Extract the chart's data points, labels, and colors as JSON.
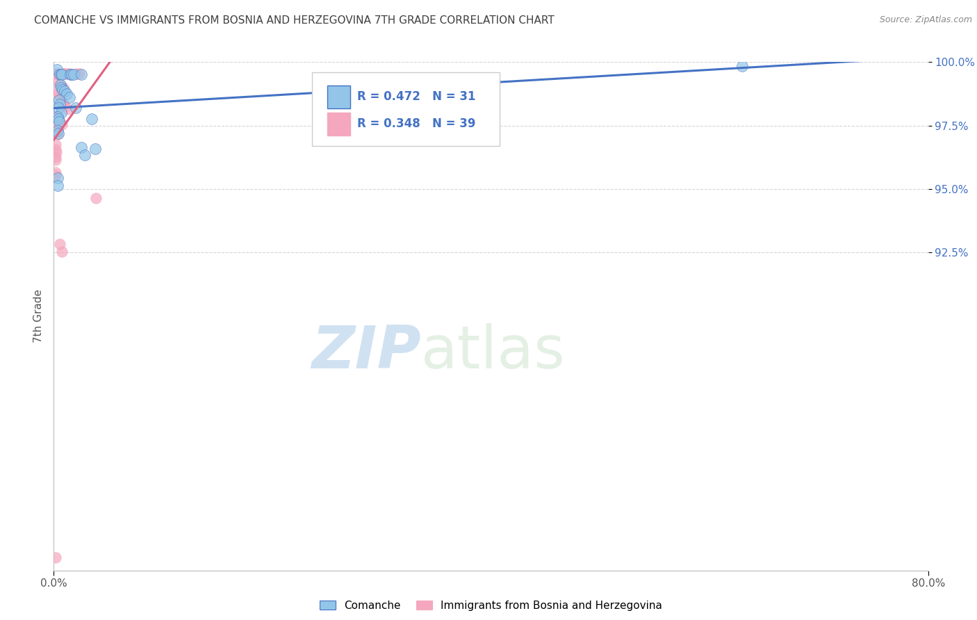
{
  "title": "COMANCHE VS IMMIGRANTS FROM BOSNIA AND HERZEGOVINA 7TH GRADE CORRELATION CHART",
  "source": "Source: ZipAtlas.com",
  "ylabel": "7th Grade",
  "watermark_zip": "ZIP",
  "watermark_atlas": "atlas",
  "legend_label_blue": "Comanche",
  "legend_label_pink": "Immigrants from Bosnia and Herzegovina",
  "r_blue": 0.472,
  "n_blue": 31,
  "r_pink": 0.348,
  "n_pink": 39,
  "xlim": [
    0.0,
    80.0
  ],
  "ylim": [
    80.0,
    100.0
  ],
  "y_ticks": [
    92.5,
    95.0,
    97.5,
    100.0
  ],
  "blue_dots": [
    [
      0.3,
      99.7
    ],
    [
      0.55,
      99.5
    ],
    [
      0.65,
      99.5
    ],
    [
      0.75,
      99.5
    ],
    [
      1.5,
      99.5
    ],
    [
      1.65,
      99.5
    ],
    [
      1.85,
      99.5
    ],
    [
      2.55,
      99.5
    ],
    [
      0.6,
      99.1
    ],
    [
      0.7,
      99.0
    ],
    [
      0.8,
      98.9
    ],
    [
      1.0,
      98.85
    ],
    [
      1.2,
      98.75
    ],
    [
      1.45,
      98.6
    ],
    [
      0.5,
      98.5
    ],
    [
      0.55,
      98.35
    ],
    [
      0.45,
      98.2
    ],
    [
      2.0,
      98.2
    ],
    [
      0.65,
      98.0
    ],
    [
      0.35,
      97.85
    ],
    [
      0.45,
      97.75
    ],
    [
      0.5,
      97.65
    ],
    [
      3.5,
      97.75
    ],
    [
      0.35,
      97.3
    ],
    [
      0.45,
      97.2
    ],
    [
      2.55,
      96.65
    ],
    [
      2.85,
      96.35
    ],
    [
      0.35,
      95.45
    ],
    [
      0.35,
      95.15
    ],
    [
      3.8,
      96.6
    ],
    [
      63.0,
      99.85
    ]
  ],
  "pink_dots": [
    [
      0.15,
      99.55
    ],
    [
      0.25,
      99.55
    ],
    [
      0.35,
      99.55
    ],
    [
      0.85,
      99.55
    ],
    [
      1.05,
      99.55
    ],
    [
      1.25,
      99.55
    ],
    [
      1.45,
      99.55
    ],
    [
      2.05,
      99.55
    ],
    [
      2.35,
      99.55
    ],
    [
      0.45,
      99.2
    ],
    [
      0.55,
      99.1
    ],
    [
      0.65,
      99.0
    ],
    [
      0.85,
      99.0
    ],
    [
      0.35,
      98.85
    ],
    [
      0.45,
      98.75
    ],
    [
      0.55,
      98.65
    ],
    [
      0.65,
      98.55
    ],
    [
      0.75,
      98.45
    ],
    [
      0.85,
      98.35
    ],
    [
      1.05,
      98.25
    ],
    [
      1.25,
      98.15
    ],
    [
      0.25,
      97.85
    ],
    [
      0.35,
      97.75
    ],
    [
      0.55,
      97.65
    ],
    [
      0.75,
      97.55
    ],
    [
      0.15,
      97.35
    ],
    [
      0.25,
      97.25
    ],
    [
      0.35,
      97.15
    ],
    [
      0.15,
      96.75
    ],
    [
      0.2,
      96.55
    ],
    [
      0.25,
      96.45
    ],
    [
      0.15,
      96.25
    ],
    [
      0.2,
      96.15
    ],
    [
      0.15,
      95.65
    ],
    [
      0.18,
      95.55
    ],
    [
      3.85,
      94.65
    ],
    [
      0.55,
      92.85
    ],
    [
      0.75,
      92.55
    ],
    [
      0.15,
      80.5
    ]
  ],
  "dot_size_blue": 130,
  "dot_size_pink": 130,
  "color_blue": "#92c5e8",
  "color_pink": "#f4a7be",
  "line_color_blue": "#4472C4",
  "line_color_pink": "#E06080",
  "background_color": "#ffffff",
  "grid_color": "#d0d0d0",
  "title_color": "#404040",
  "axis_label_color": "#555555",
  "tick_color_y": "#4472C4",
  "tick_color_x": "#555555"
}
